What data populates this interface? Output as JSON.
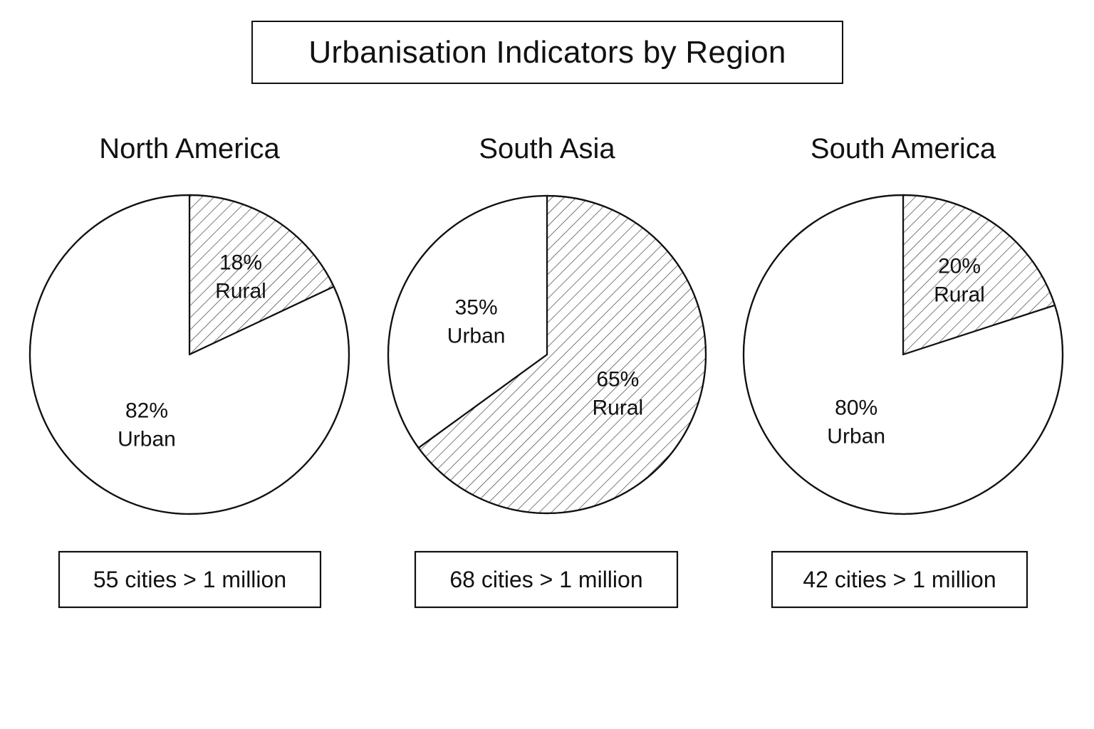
{
  "chart_data": {
    "type": "pie",
    "title": "Urbanisation Indicators by Region",
    "pies": [
      {
        "region": "North America",
        "slices": [
          {
            "name": "Rural",
            "value": 18,
            "label": "18%",
            "hatched": true
          },
          {
            "name": "Urban",
            "value": 82,
            "label": "82%",
            "hatched": false
          }
        ],
        "cities_note": "55 cities > 1 million"
      },
      {
        "region": "South Asia",
        "slices": [
          {
            "name": "Rural",
            "value": 65,
            "label": "65%",
            "hatched": true
          },
          {
            "name": "Urban",
            "value": 35,
            "label": "35%",
            "hatched": false
          }
        ],
        "cities_note": "68 cities > 1 million"
      },
      {
        "region": "South America",
        "slices": [
          {
            "name": "Rural",
            "value": 20,
            "label": "20%",
            "hatched": true
          },
          {
            "name": "Urban",
            "value": 80,
            "label": "80%",
            "hatched": false
          }
        ],
        "cities_note": "42 cities > 1 million"
      }
    ],
    "colors": {
      "stroke": "#111111",
      "fill": "#ffffff",
      "hatch": "#333333"
    }
  }
}
